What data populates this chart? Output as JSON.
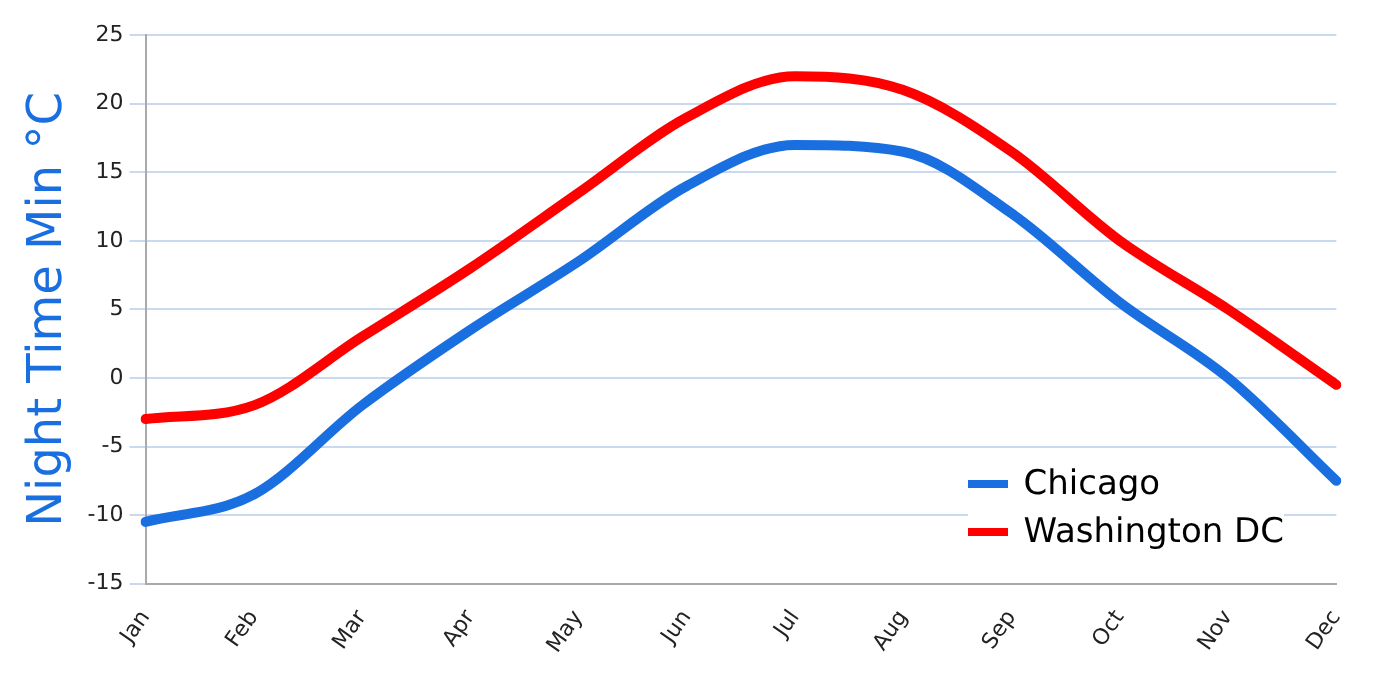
{
  "chart_data": {
    "type": "line",
    "ylabel": "Night Time Min °C",
    "categories": [
      "Jan",
      "Feb",
      "Mar",
      "Apr",
      "May",
      "Jun",
      "Jul",
      "Aug",
      "Sep",
      "Oct",
      "Nov",
      "Dec"
    ],
    "series": [
      {
        "name": "Chicago",
        "color": "#1a6fe0",
        "values": [
          -10.5,
          -8.5,
          -2,
          3.5,
          8.5,
          14,
          17,
          16.5,
          12,
          5.5,
          0,
          -7.5
        ]
      },
      {
        "name": "Washington DC",
        "color": "#ff0000",
        "values": [
          -3,
          -2,
          3,
          8,
          13.5,
          19,
          22,
          21,
          16.5,
          10,
          5,
          -0.5
        ]
      }
    ],
    "ylim": [
      -15,
      25
    ],
    "yticks": [
      -15,
      -10,
      -5,
      0,
      5,
      10,
      15,
      20,
      25
    ],
    "grid": "y",
    "legend": "bottom right",
    "marker": "none",
    "line_style": "solid"
  }
}
